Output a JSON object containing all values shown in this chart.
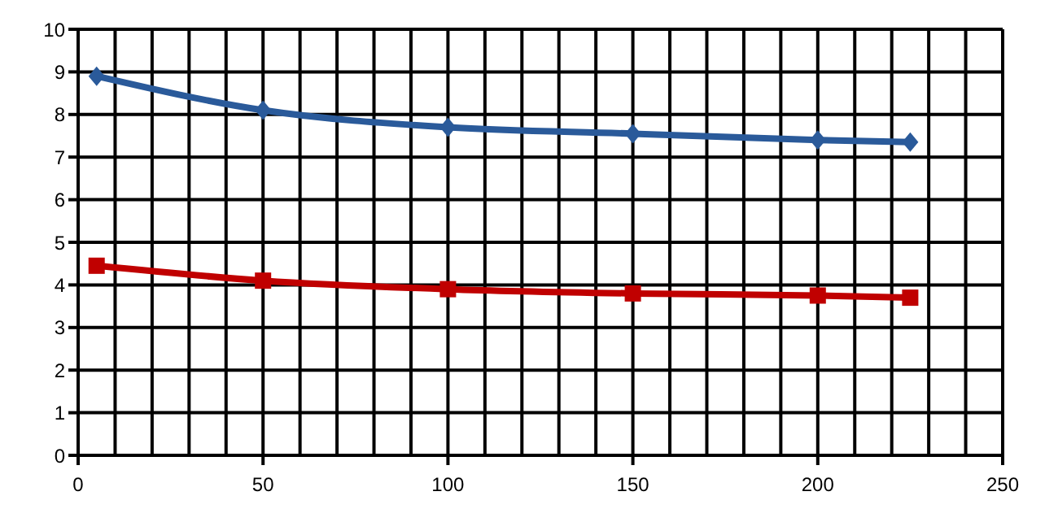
{
  "chart_data": {
    "type": "line",
    "x": [
      5,
      50,
      100,
      150,
      200,
      225
    ],
    "series": [
      {
        "color": "#2a5a9a",
        "marker": "diamond",
        "values": [
          8.9,
          8.1,
          7.7,
          7.55,
          7.4,
          7.35
        ]
      },
      {
        "color": "#c00000",
        "marker": "square",
        "values": [
          4.45,
          4.1,
          3.9,
          3.8,
          3.75,
          3.7
        ]
      }
    ],
    "xlim": [
      0,
      250
    ],
    "xticks": [
      0,
      {
        "value": 10,
        "label": null
      },
      {
        "value": 20,
        "label": null
      },
      {
        "value": 30,
        "label": null
      },
      {
        "value": 40,
        "label": null
      },
      50,
      {
        "value": 60,
        "label": null
      },
      {
        "value": 70,
        "label": null
      },
      {
        "value": 80,
        "label": null
      },
      {
        "value": 90,
        "label": null
      },
      100,
      {
        "value": 110,
        "label": null
      },
      {
        "value": 120,
        "label": null
      },
      {
        "value": 130,
        "label": null
      },
      {
        "value": 140,
        "label": null
      },
      150,
      {
        "value": 160,
        "label": null
      },
      {
        "value": 170,
        "label": null
      },
      {
        "value": 180,
        "label": null
      },
      {
        "value": 190,
        "label": null
      },
      200,
      {
        "value": 210,
        "label": null
      },
      {
        "value": 220,
        "label": null
      },
      {
        "value": 230,
        "label": null
      },
      {
        "value": 240,
        "label": null
      },
      250
    ],
    "ylim": [
      0,
      10
    ],
    "yticks": [
      0,
      1,
      2,
      3,
      4,
      5,
      6,
      7,
      8,
      9,
      10
    ],
    "grid": true,
    "line_style": "solid"
  }
}
